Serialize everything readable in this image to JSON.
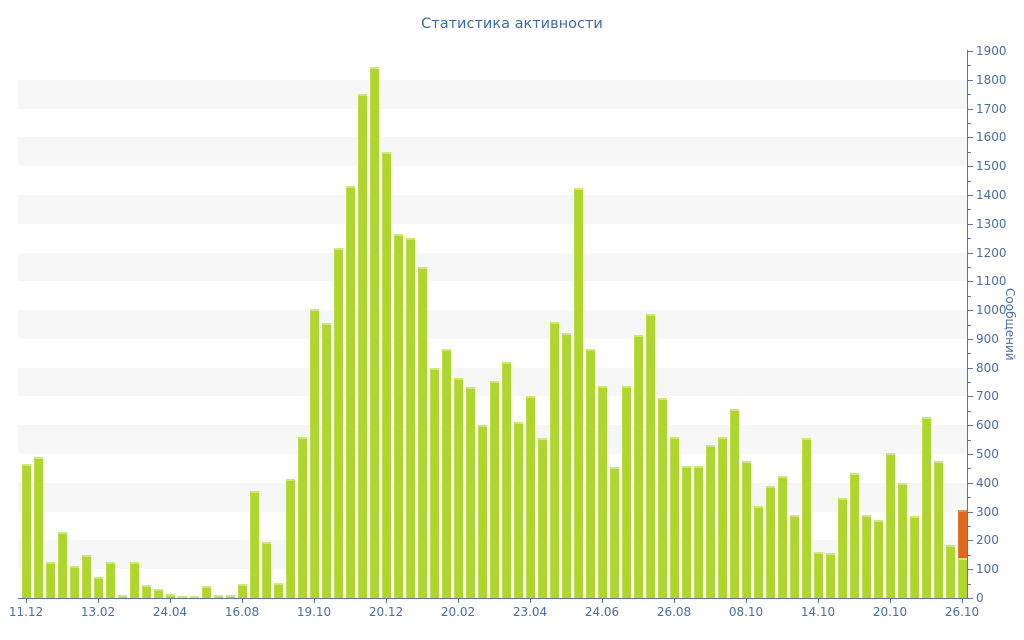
{
  "chart_data": {
    "type": "bar",
    "title": "Статистика активности",
    "ylabel": "Сообщений",
    "xlabel": "",
    "ylim": [
      0,
      1900
    ],
    "y_major_tick_step": 100,
    "y_minor_tick_step": 50,
    "y_tick_labels": [
      0,
      100,
      200,
      300,
      400,
      500,
      600,
      700,
      800,
      900,
      1000,
      1100,
      1200,
      1300,
      1400,
      1500,
      1600,
      1700,
      1800,
      1900
    ],
    "grid": "alternating-horizontal-stripes",
    "legend": "none",
    "x_tick_labels": [
      "11.12",
      "13.02",
      "24.04",
      "16.08",
      "19.10",
      "20.12",
      "20.02",
      "23.04",
      "24.06",
      "26.08",
      "08.10",
      "14.10",
      "20.10",
      "26.10"
    ],
    "x_tick_every_n_bars": 6,
    "values": [
      467,
      490,
      125,
      230,
      112,
      150,
      73,
      126,
      12,
      125,
      46,
      32,
      14,
      8,
      6,
      40,
      10,
      12,
      50,
      372,
      193,
      52,
      415,
      558,
      1005,
      955,
      1215,
      1430,
      1750,
      1845,
      1550,
      1265,
      1250,
      1150,
      800,
      865,
      765,
      733,
      600,
      755,
      820,
      612,
      700,
      556,
      960,
      920,
      1425,
      865,
      735,
      455,
      735,
      915,
      985,
      695,
      560,
      460,
      460,
      530,
      560,
      655,
      475,
      320,
      390,
      425,
      287,
      555,
      160,
      155,
      346,
      435,
      290,
      270,
      505,
      400,
      286,
      630,
      475,
      185,
      [
        140,
        165
      ]
    ],
    "last_bar_note": "final bar is stacked: 140 (green) + 165 (orange highlight), total 305",
    "colors": {
      "bar": "#aed62e",
      "bar_edge": "#cde878",
      "accent_bar": "#e0671d",
      "accent_bar_edge": "#ec9348",
      "title_text": "#3d6ca3",
      "tick_text": "#4a6fa5",
      "axis_line": "#5b74ae",
      "stripe": "#f7f7f7",
      "background": "#ffffff"
    }
  }
}
